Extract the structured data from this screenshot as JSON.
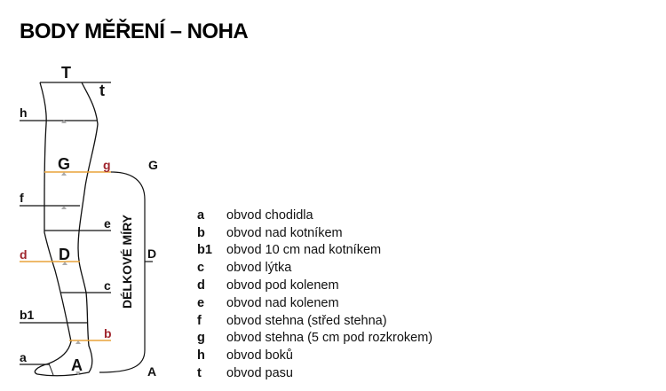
{
  "title": "BODY MĚŘENÍ – NOHA",
  "colors": {
    "highlight_line": "#e8a33a",
    "highlight_label": "#a0262e",
    "line": "#111111",
    "marker": "#aaaaaa"
  },
  "diagram": {
    "top_label": "T",
    "labels": {
      "t": "t",
      "h": "h",
      "G_inner": "G",
      "g": "g",
      "G_right": "G",
      "f": "f",
      "e": "e",
      "d": "d",
      "D_inner": "D",
      "D_right": "D",
      "c": "c",
      "b1": "b1",
      "b": "b",
      "a": "a",
      "A_inner": "A",
      "A_right": "A"
    },
    "bracket_label": "DÉLKOVÉ MÍRY"
  },
  "legend": [
    {
      "key": "a",
      "text": "obvod chodidla"
    },
    {
      "key": "b",
      "text": "obvod nad kotníkem"
    },
    {
      "key": "b1",
      "text": "obvod 10 cm nad kotníkem"
    },
    {
      "key": "c",
      "text": "obvod lýtka"
    },
    {
      "key": "d",
      "text": "obvod pod kolenem"
    },
    {
      "key": "e",
      "text": "obvod nad kolenem"
    },
    {
      "key": "f",
      "text": "obvod stehna (střed stehna)"
    },
    {
      "key": "g",
      "text": "obvod stehna (5 cm pod rozkrokem)"
    },
    {
      "key": "h",
      "text": "obvod boků"
    },
    {
      "key": "t",
      "text": "obvod pasu"
    }
  ]
}
